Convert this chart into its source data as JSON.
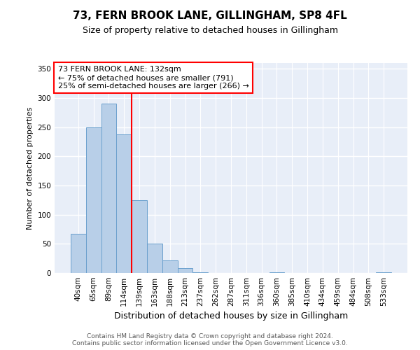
{
  "title": "73, FERN BROOK LANE, GILLINGHAM, SP8 4FL",
  "subtitle": "Size of property relative to detached houses in Gillingham",
  "xlabel": "Distribution of detached houses by size in Gillingham",
  "ylabel": "Number of detached properties",
  "footer_line1": "Contains HM Land Registry data © Crown copyright and database right 2024.",
  "footer_line2": "Contains public sector information licensed under the Open Government Licence v3.0.",
  "annotation_line1": "73 FERN BROOK LANE: 132sqm",
  "annotation_line2": "← 75% of detached houses are smaller (791)",
  "annotation_line3": "25% of semi-detached houses are larger (266) →",
  "categories": [
    "40sqm",
    "65sqm",
    "89sqm",
    "114sqm",
    "139sqm",
    "163sqm",
    "188sqm",
    "213sqm",
    "237sqm",
    "262sqm",
    "287sqm",
    "311sqm",
    "336sqm",
    "360sqm",
    "385sqm",
    "410sqm",
    "434sqm",
    "459sqm",
    "484sqm",
    "508sqm",
    "533sqm"
  ],
  "bar_heights": [
    67,
    250,
    291,
    238,
    125,
    50,
    22,
    8,
    1,
    0,
    0,
    0,
    0,
    1,
    0,
    0,
    0,
    0,
    0,
    0,
    1
  ],
  "bar_color": "#b8cfe8",
  "bar_edge_color": "#6aa0cd",
  "background_color": "#e8eef8",
  "ylim": [
    0,
    360
  ],
  "yticks": [
    0,
    50,
    100,
    150,
    200,
    250,
    300,
    350
  ],
  "red_line_x": 3.5,
  "title_fontsize": 11,
  "subtitle_fontsize": 9,
  "ylabel_fontsize": 8,
  "xlabel_fontsize": 9,
  "tick_fontsize": 7.5,
  "annot_fontsize": 8,
  "footer_fontsize": 6.5
}
